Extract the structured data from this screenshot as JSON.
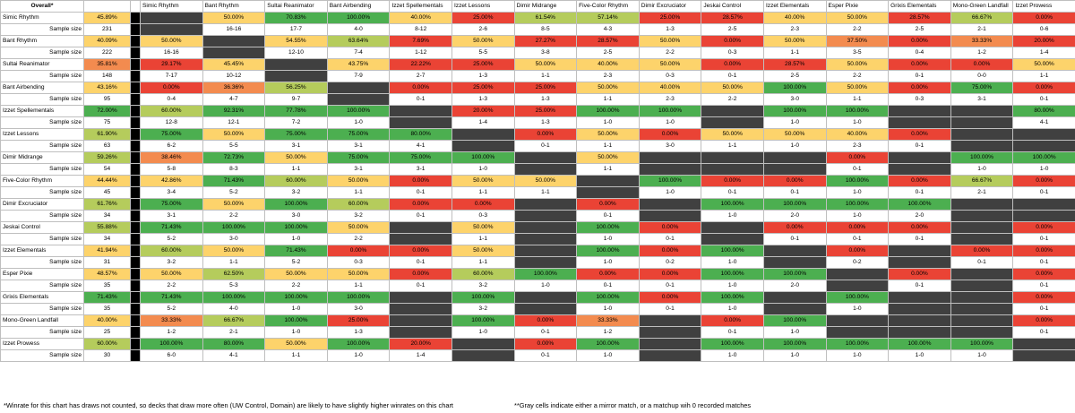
{
  "corner_label": "Overall*",
  "colors": {
    "dark_green": "#4caf50",
    "light_green": "#b5cc5c",
    "yellow": "#fdd36b",
    "orange": "#f38b4f",
    "red": "#ea4335",
    "mirror_gray": "#404040",
    "separator": "#000000"
  },
  "sample_size_label": "Sample size",
  "columns": [
    "Simic Rhythm",
    "Bant Rhythm",
    "Sultai Reanimator",
    "Bant Airbending",
    "Izzet Spellementals",
    "Izzet Lessons",
    "Dimir Midrange",
    "Five-Color Rhythm",
    "Dimir Excruciator",
    "Jeskai Control",
    "Izzet Elementals",
    "Esper Pixie",
    "Grixis Elementals",
    "Mono-Green Landfall",
    "Izzet Prowess"
  ],
  "rows": [
    {
      "name": "Simic Rhythm",
      "overall": "45.89%",
      "sample": "231",
      "cells": [
        null,
        "50.00%",
        "70.83%",
        "100.00%",
        "40.00%",
        "25.00%",
        "61.54%",
        "57.14%",
        "25.00%",
        "28.57%",
        "40.00%",
        "50.00%",
        "28.57%",
        "66.67%",
        "0.00%"
      ],
      "sizes": [
        null,
        "16-16",
        "17-7",
        "4-0",
        "8-12",
        "2-6",
        "8-5",
        "4-3",
        "1-3",
        "2-5",
        "2-3",
        "2-2",
        "2-5",
        "2-1",
        "0-6"
      ]
    },
    {
      "name": "Bant Rhythm",
      "overall": "40.09%",
      "sample": "222",
      "cells": [
        "50.00%",
        null,
        "54.55%",
        "63.64%",
        "7.69%",
        "50.00%",
        "27.27%",
        "28.57%",
        "50.00%",
        "0.00%",
        "50.00%",
        "37.50%",
        "0.00%",
        "33.33%",
        "20.00%"
      ],
      "sizes": [
        "16-16",
        null,
        "12-10",
        "7-4",
        "1-12",
        "5-5",
        "3-8",
        "2-5",
        "2-2",
        "0-3",
        "1-1",
        "3-5",
        "0-4",
        "1-2",
        "1-4"
      ]
    },
    {
      "name": "Sultai Reanimator",
      "overall": "35.81%",
      "sample": "148",
      "cells": [
        "29.17%",
        "45.45%",
        null,
        "43.75%",
        "22.22%",
        "25.00%",
        "50.00%",
        "40.00%",
        "50.00%",
        "0.00%",
        "28.57%",
        "50.00%",
        "0.00%",
        "0.00%",
        "50.00%"
      ],
      "sizes": [
        "7-17",
        "10-12",
        null,
        "7-9",
        "2-7",
        "1-3",
        "1-1",
        "2-3",
        "0-3",
        "0-1",
        "2-5",
        "2-2",
        "0-1",
        "0-0",
        "1-1"
      ]
    },
    {
      "name": "Bant Airbending",
      "overall": "43.16%",
      "sample": "95",
      "cells": [
        "0.00%",
        "36.36%",
        "56.25%",
        null,
        "0.00%",
        "25.00%",
        "25.00%",
        "50.00%",
        "40.00%",
        "50.00%",
        "100.00%",
        "50.00%",
        "0.00%",
        "75.00%",
        "0.00%"
      ],
      "sizes": [
        "0-4",
        "4-7",
        "9-7",
        null,
        "0-1",
        "1-3",
        "1-3",
        "1-1",
        "2-3",
        "2-2",
        "3-0",
        "1-1",
        "0-3",
        "3-1",
        "0-1"
      ]
    },
    {
      "name": "Izzet Spellementals",
      "overall": "72.00%",
      "sample": "75",
      "cells": [
        "60.00%",
        "92.31%",
        "77.78%",
        "100.00%",
        null,
        "20.00%",
        "25.00%",
        "100.00%",
        "100.00%",
        null,
        "100.00%",
        "100.00%",
        null,
        null,
        "80.00%"
      ],
      "sizes": [
        "12-8",
        "12-1",
        "7-2",
        "1-0",
        null,
        "1-4",
        "1-3",
        "1-0",
        "1-0",
        null,
        "1-0",
        "1-0",
        null,
        null,
        "4-1"
      ]
    },
    {
      "name": "Izzet Lessons",
      "overall": "61.90%",
      "sample": "63",
      "cells": [
        "75.00%",
        "50.00%",
        "75.00%",
        "75.00%",
        "80.00%",
        null,
        "0.00%",
        "50.00%",
        "0.00%",
        "50.00%",
        "50.00%",
        "40.00%",
        "0.00%",
        null,
        null
      ],
      "sizes": [
        "6-2",
        "5-5",
        "3-1",
        "3-1",
        "4-1",
        null,
        "0-1",
        "1-1",
        "3-0",
        "1-1",
        "1-0",
        "2-3",
        "0-1",
        null,
        null
      ]
    },
    {
      "name": "Dimir Midrange",
      "overall": "59.26%",
      "sample": "54",
      "cells": [
        "38.46%",
        "72.73%",
        "50.00%",
        "75.00%",
        "75.00%",
        "100.00%",
        null,
        "50.00%",
        null,
        null,
        null,
        "0.00%",
        null,
        "100.00%",
        "100.00%"
      ],
      "sizes": [
        "5-8",
        "8-3",
        "1-1",
        "3-1",
        "3-1",
        "1-0",
        null,
        "1-1",
        null,
        null,
        null,
        "0-1",
        null,
        "1-0",
        "1-0"
      ]
    },
    {
      "name": "Five-Color Rhythm",
      "overall": "44.44%",
      "sample": "45",
      "cells": [
        "42.86%",
        "71.43%",
        "60.00%",
        "50.00%",
        "0.00%",
        "50.00%",
        "50.00%",
        null,
        "100.00%",
        "0.00%",
        "0.00%",
        "100.00%",
        "0.00%",
        "66.67%",
        "0.00%"
      ],
      "sizes": [
        "3-4",
        "5-2",
        "3-2",
        "1-1",
        "0-1",
        "1-1",
        "1-1",
        null,
        "1-0",
        "0-1",
        "0-1",
        "1-0",
        "0-1",
        "2-1",
        "0-1"
      ]
    },
    {
      "name": "Dimir Excruciator",
      "overall": "61.76%",
      "sample": "34",
      "cells": [
        "75.00%",
        "50.00%",
        "100.00%",
        "60.00%",
        "0.00%",
        "0.00%",
        null,
        "0.00%",
        null,
        "100.00%",
        "100.00%",
        "100.00%",
        "100.00%",
        null,
        null
      ],
      "sizes": [
        "3-1",
        "2-2",
        "3-0",
        "3-2",
        "0-1",
        "0-3",
        null,
        "0-1",
        null,
        "1-0",
        "2-0",
        "1-0",
        "2-0",
        null,
        null
      ]
    },
    {
      "name": "Jeskai Control",
      "overall": "55.88%",
      "sample": "34",
      "cells": [
        "71.43%",
        "100.00%",
        "100.00%",
        "50.00%",
        null,
        "50.00%",
        null,
        "100.00%",
        "0.00%",
        null,
        "0.00%",
        "0.00%",
        "0.00%",
        null,
        "0.00%"
      ],
      "sizes": [
        "5-2",
        "3-0",
        "1-0",
        "2-2",
        null,
        "1-1",
        null,
        "1-0",
        "0-1",
        null,
        "0-1",
        "0-1",
        "0-1",
        null,
        "0-1"
      ]
    },
    {
      "name": "Izzet Elementals",
      "overall": "41.94%",
      "sample": "31",
      "cells": [
        "60.00%",
        "50.00%",
        "71.43%",
        "0.00%",
        "0.00%",
        "50.00%",
        null,
        "100.00%",
        "0.00%",
        "100.00%",
        null,
        "0.00%",
        null,
        "0.00%",
        "0.00%"
      ],
      "sizes": [
        "3-2",
        "1-1",
        "5-2",
        "0-3",
        "0-1",
        "1-1",
        null,
        "1-0",
        "0-2",
        "1-0",
        null,
        "0-2",
        null,
        "0-1",
        "0-1"
      ]
    },
    {
      "name": "Esper Pixie",
      "overall": "48.57%",
      "sample": "35",
      "cells": [
        "50.00%",
        "62.50%",
        "50.00%",
        "50.00%",
        "0.00%",
        "60.00%",
        "100.00%",
        "0.00%",
        "0.00%",
        "100.00%",
        "100.00%",
        null,
        "0.00%",
        null,
        "0.00%"
      ],
      "sizes": [
        "2-2",
        "5-3",
        "2-2",
        "1-1",
        "0-1",
        "3-2",
        "1-0",
        "0-1",
        "0-1",
        "1-0",
        "2-0",
        null,
        "0-1",
        null,
        "0-1"
      ]
    },
    {
      "name": "Grixis Elementals",
      "overall": "71.43%",
      "sample": "35",
      "cells": [
        "71.43%",
        "100.00%",
        "100.00%",
        "100.00%",
        null,
        "100.00%",
        null,
        "100.00%",
        "0.00%",
        "100.00%",
        null,
        "100.00%",
        null,
        null,
        "0.00%"
      ],
      "sizes": [
        "5-2",
        "4-0",
        "1-0",
        "3-0",
        null,
        "3-2",
        null,
        "1-0",
        "0-1",
        "1-0",
        null,
        "1-0",
        null,
        null,
        "0-1"
      ]
    },
    {
      "name": "Mono-Green Landfall",
      "overall": "40.00%",
      "sample": "25",
      "cells": [
        "33.33%",
        "66.67%",
        "100.00%",
        "25.00%",
        null,
        "100.00%",
        "0.00%",
        "33.33%",
        null,
        "0.00%",
        "100.00%",
        null,
        null,
        null,
        "0.00%"
      ],
      "sizes": [
        "1-2",
        "2-1",
        "1-0",
        "1-3",
        null,
        "1-0",
        "0-1",
        "1-2",
        null,
        "0-1",
        "1-0",
        null,
        null,
        null,
        "0-1"
      ]
    },
    {
      "name": "Izzet Prowess",
      "overall": "60.00%",
      "sample": "30",
      "cells": [
        "100.00%",
        "80.00%",
        "50.00%",
        "100.00%",
        "20.00%",
        null,
        "0.00%",
        "100.00%",
        null,
        "100.00%",
        "100.00%",
        "100.00%",
        "100.00%",
        "100.00%",
        null
      ],
      "sizes": [
        "6-0",
        "4-1",
        "1-1",
        "1-0",
        "1-4",
        null,
        "0-1",
        "1-0",
        null,
        "1-0",
        "1-0",
        "1-0",
        "1-0",
        "1-0",
        null
      ]
    }
  ],
  "footnotes": {
    "draws_note": "*Winrate for this chart has draws not counted, so decks that draw more often (UW Control, Domain) are likely to have slightly higher winrates on this chart",
    "gray_note": "**Gray cells indicate either a mirror match, or a matchup wih 0 recorded matches"
  }
}
